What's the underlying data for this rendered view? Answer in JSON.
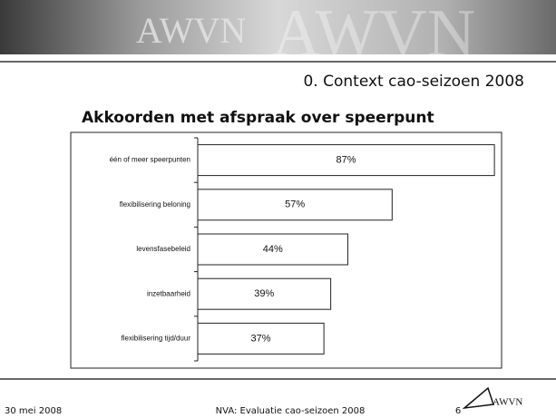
{
  "header": {
    "brand": "AWVN"
  },
  "section_title": "0. Context cao-seizoen 2008",
  "chart_data": {
    "type": "bar",
    "orientation": "horizontal",
    "title": "Akkoorden met afspraak over speerpunt",
    "categories": [
      "één of meer speerpunten",
      "flexibilisering beloning",
      "levensfasebeleid",
      "inzetbaarheid",
      "flexibilisering tijd/duur"
    ],
    "values": [
      87,
      57,
      44,
      39,
      37
    ],
    "value_labels": [
      "87%",
      "57%",
      "44%",
      "39%",
      "37%"
    ],
    "color": "#ffffff"
  },
  "footer": {
    "date": "30 mei 2008",
    "center": "NVA: Evaluatie cao-seizoen 2008",
    "page": "6",
    "logo": "AWVN"
  }
}
